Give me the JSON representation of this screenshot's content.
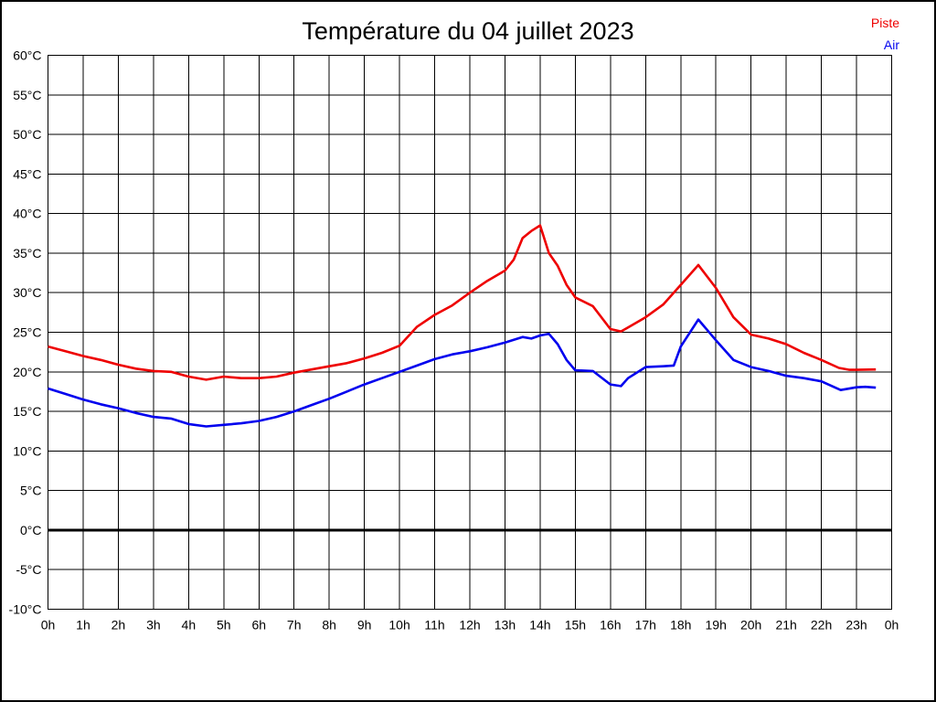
{
  "page": {
    "title": "Température du 04 juillet 2023"
  },
  "legend": {
    "items": [
      {
        "label": "Piste",
        "color": "#ee0000"
      },
      {
        "label": "Air",
        "color": "#0000ee"
      }
    ]
  },
  "chart_data": {
    "type": "line",
    "title": "Température du 04 juillet 2023",
    "xlabel": "",
    "ylabel": "",
    "x_unit": "hour of day",
    "y_unit": "°C",
    "xlim": [
      0,
      24
    ],
    "ylim": [
      -10,
      60
    ],
    "grid": true,
    "legend_position": "top-right",
    "x_tick_labels": [
      "0h",
      "1h",
      "2h",
      "3h",
      "4h",
      "5h",
      "6h",
      "7h",
      "8h",
      "9h",
      "10h",
      "11h",
      "12h",
      "13h",
      "14h",
      "15h",
      "16h",
      "17h",
      "18h",
      "19h",
      "20h",
      "21h",
      "22h",
      "23h",
      "0h"
    ],
    "y_ticks": [
      {
        "value": 60,
        "label": "60°C"
      },
      {
        "value": 55,
        "label": "55°C"
      },
      {
        "value": 50,
        "label": "50°C"
      },
      {
        "value": 45,
        "label": "45°C"
      },
      {
        "value": 40,
        "label": "40°C"
      },
      {
        "value": 35,
        "label": "35°C"
      },
      {
        "value": 30,
        "label": "30°C"
      },
      {
        "value": 25,
        "label": "25°C"
      },
      {
        "value": 20,
        "label": "20°C"
      },
      {
        "value": 15,
        "label": "15°C"
      },
      {
        "value": 10,
        "label": "10°C"
      },
      {
        "value": 5,
        "label": "5°C"
      },
      {
        "value": 0,
        "label": "0°C"
      },
      {
        "value": -5,
        "label": "-5°C"
      },
      {
        "value": -10,
        "label": "-10°C"
      }
    ],
    "zero_line": {
      "value": 0,
      "width": 3,
      "color": "#000000"
    },
    "series": [
      {
        "name": "Piste",
        "color": "#ee0000",
        "points": [
          [
            0,
            23.2
          ],
          [
            0.5,
            22.6
          ],
          [
            1,
            22.0
          ],
          [
            1.5,
            21.5
          ],
          [
            2,
            20.9
          ],
          [
            2.5,
            20.4
          ],
          [
            3,
            20.1
          ],
          [
            3.5,
            20.0
          ],
          [
            4,
            19.4
          ],
          [
            4.5,
            19.0
          ],
          [
            5,
            19.4
          ],
          [
            5.5,
            19.2
          ],
          [
            6,
            19.2
          ],
          [
            6.5,
            19.4
          ],
          [
            7,
            19.9
          ],
          [
            7.5,
            20.3
          ],
          [
            8,
            20.7
          ],
          [
            8.5,
            21.1
          ],
          [
            9,
            21.7
          ],
          [
            9.5,
            22.4
          ],
          [
            10,
            23.3
          ],
          [
            10.5,
            25.7
          ],
          [
            11,
            27.2
          ],
          [
            11.5,
            28.4
          ],
          [
            12,
            30.0
          ],
          [
            12.5,
            31.5
          ],
          [
            13,
            32.8
          ],
          [
            13.25,
            34.2
          ],
          [
            13.5,
            36.9
          ],
          [
            13.75,
            37.8
          ],
          [
            14,
            38.5
          ],
          [
            14.25,
            35.0
          ],
          [
            14.5,
            33.4
          ],
          [
            14.75,
            31.0
          ],
          [
            15,
            29.4
          ],
          [
            15.5,
            28.3
          ],
          [
            16,
            25.4
          ],
          [
            16.3,
            25.1
          ],
          [
            16.5,
            25.6
          ],
          [
            17,
            26.9
          ],
          [
            17.5,
            28.5
          ],
          [
            18,
            31.0
          ],
          [
            18.5,
            33.5
          ],
          [
            19,
            30.6
          ],
          [
            19.5,
            26.9
          ],
          [
            20,
            24.7
          ],
          [
            20.5,
            24.2
          ],
          [
            21,
            23.5
          ],
          [
            21.5,
            22.4
          ],
          [
            22,
            21.5
          ],
          [
            22.5,
            20.5
          ],
          [
            22.8,
            20.25
          ],
          [
            23,
            20.25
          ],
          [
            23.55,
            20.3
          ]
        ]
      },
      {
        "name": "Air",
        "color": "#0000ee",
        "points": [
          [
            0,
            17.9
          ],
          [
            0.5,
            17.2
          ],
          [
            1,
            16.5
          ],
          [
            1.5,
            15.9
          ],
          [
            2,
            15.4
          ],
          [
            2.5,
            14.8
          ],
          [
            3,
            14.3
          ],
          [
            3.5,
            14.1
          ],
          [
            4,
            13.4
          ],
          [
            4.5,
            13.1
          ],
          [
            5,
            13.3
          ],
          [
            5.5,
            13.5
          ],
          [
            6,
            13.8
          ],
          [
            6.5,
            14.3
          ],
          [
            7,
            15.0
          ],
          [
            7.5,
            15.8
          ],
          [
            8,
            16.6
          ],
          [
            8.5,
            17.5
          ],
          [
            9,
            18.4
          ],
          [
            9.5,
            19.2
          ],
          [
            10,
            20.0
          ],
          [
            10.5,
            20.8
          ],
          [
            11,
            21.6
          ],
          [
            11.5,
            22.2
          ],
          [
            12,
            22.6
          ],
          [
            12.5,
            23.1
          ],
          [
            13,
            23.7
          ],
          [
            13.5,
            24.4
          ],
          [
            13.75,
            24.2
          ],
          [
            14,
            24.6
          ],
          [
            14.25,
            24.8
          ],
          [
            14.5,
            23.5
          ],
          [
            14.75,
            21.5
          ],
          [
            15,
            20.2
          ],
          [
            15.5,
            20.1
          ],
          [
            16,
            18.4
          ],
          [
            16.3,
            18.2
          ],
          [
            16.5,
            19.2
          ],
          [
            17,
            20.6
          ],
          [
            17.5,
            20.7
          ],
          [
            17.8,
            20.8
          ],
          [
            18,
            23.2
          ],
          [
            18.5,
            26.6
          ],
          [
            19,
            24.0
          ],
          [
            19.5,
            21.5
          ],
          [
            20,
            20.6
          ],
          [
            20.5,
            20.1
          ],
          [
            21,
            19.5
          ],
          [
            21.5,
            19.2
          ],
          [
            22,
            18.8
          ],
          [
            22.55,
            17.7
          ],
          [
            23,
            18.05
          ],
          [
            23.25,
            18.1
          ],
          [
            23.55,
            18.0
          ]
        ]
      }
    ]
  }
}
